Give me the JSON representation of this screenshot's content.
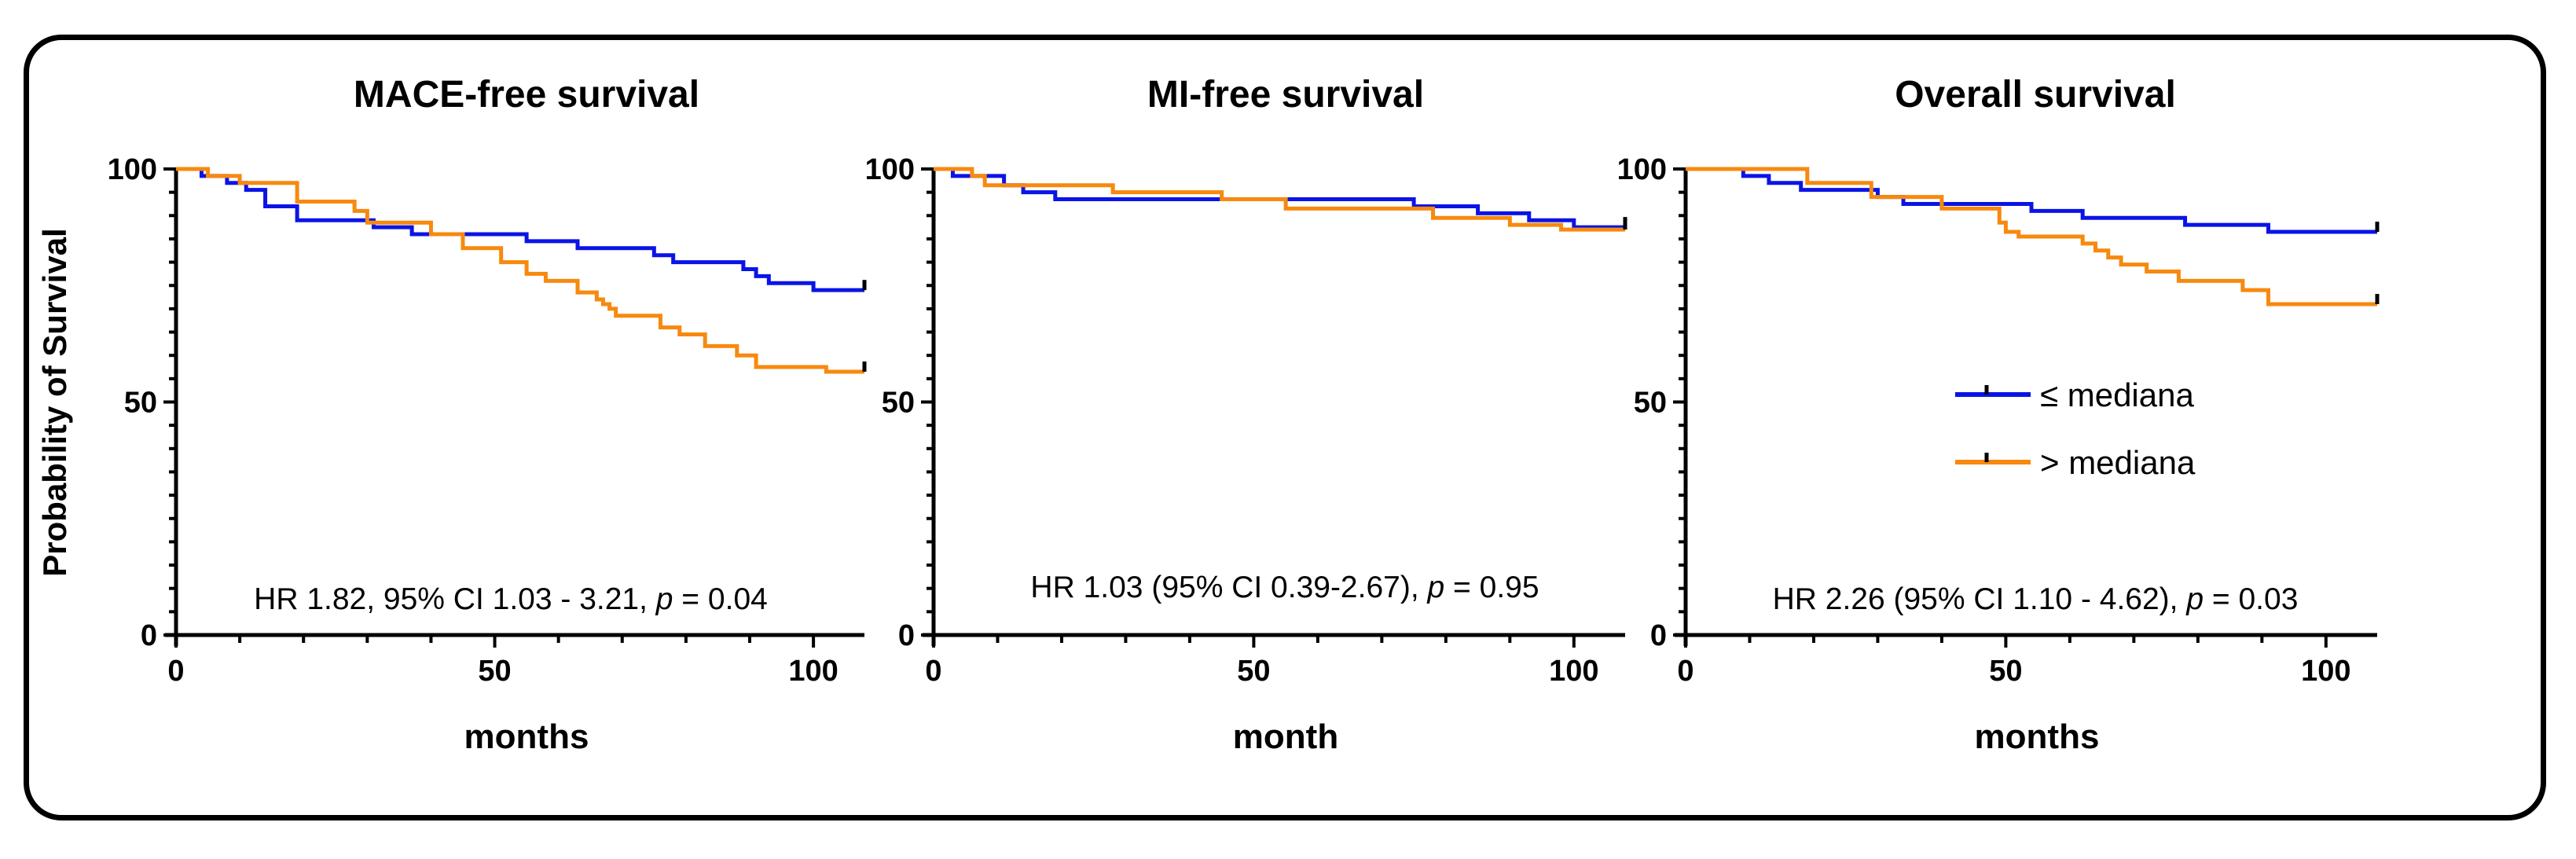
{
  "colors": {
    "le_median": "#0a14e6",
    "gt_median": "#f7890f",
    "axis": "#000000",
    "censor": "#000000"
  },
  "legend": {
    "le_label": "≤ mediana",
    "gt_label": "> mediana"
  },
  "y_axis_label": "Probability of Survival",
  "chart_data": [
    {
      "type": "line",
      "step": true,
      "title": "MACE-free survival",
      "xlabel": "months",
      "ylabel": "Probability of Survival",
      "xlim": [
        0,
        108
      ],
      "ylim": [
        0,
        100
      ],
      "xticks": [
        0,
        50,
        100
      ],
      "yticks": [
        0,
        50,
        100
      ],
      "annotation": {
        "prefix": "HR 1.82, 95% CI 1.03 - 3.21, ",
        "p": "p",
        "suffix": " = 0.04"
      },
      "series": [
        {
          "name": "≤ mediana",
          "color_key": "le_median",
          "x": [
            0,
            4,
            8,
            11,
            14,
            19,
            31,
            37,
            55,
            63,
            75,
            78,
            89,
            91,
            93,
            97,
            100,
            108
          ],
          "y": [
            100,
            98.5,
            97,
            95.5,
            92,
            89,
            87.5,
            86,
            84.5,
            83,
            81.5,
            80,
            78.5,
            77,
            75.5,
            75.5,
            74,
            74
          ],
          "censor": [
            108
          ]
        },
        {
          "name": "> mediana",
          "color_key": "gt_median",
          "x": [
            0,
            5,
            10,
            19,
            28,
            30,
            40,
            45,
            51,
            55,
            58,
            63,
            66,
            67,
            68,
            69,
            71,
            76,
            79,
            83,
            88,
            91,
            100,
            102,
            108
          ],
          "y": [
            100,
            98.5,
            97,
            93,
            91,
            88.5,
            86,
            83,
            80,
            77.5,
            76,
            73.5,
            72,
            71,
            70,
            68.5,
            68.5,
            66,
            64.5,
            62,
            60,
            57.5,
            57.5,
            56.5,
            56.5
          ],
          "censor": [
            108
          ]
        }
      ]
    },
    {
      "type": "line",
      "step": true,
      "title": "MI-free survival",
      "xlabel": "month",
      "ylabel": "",
      "xlim": [
        0,
        108
      ],
      "ylim": [
        0,
        100
      ],
      "xticks": [
        0,
        50,
        100
      ],
      "yticks": [
        0,
        50,
        100
      ],
      "annotation": {
        "prefix": "HR 1.03 (95% CI 0.39-2.67), ",
        "p": "p",
        "suffix": " = 0.95"
      },
      "series": [
        {
          "name": "≤ mediana",
          "color_key": "le_median",
          "x": [
            0,
            3,
            11,
            14,
            19,
            75,
            85,
            93,
            100,
            108
          ],
          "y": [
            100,
            98.5,
            96.5,
            95,
            93.5,
            92,
            90.5,
            89,
            87.5,
            87.5
          ],
          "censor": [
            108
          ]
        },
        {
          "name": "> mediana",
          "color_key": "gt_median",
          "x": [
            0,
            6,
            8,
            28,
            45,
            55,
            78,
            90,
            98,
            108
          ],
          "y": [
            100,
            98.5,
            96.5,
            95,
            93.5,
            91.5,
            89.5,
            88,
            87,
            87
          ],
          "censor": [
            108
          ]
        }
      ]
    },
    {
      "type": "line",
      "step": true,
      "title": "Overall survival",
      "xlabel": "months",
      "ylabel": "",
      "xlim": [
        0,
        108
      ],
      "ylim": [
        0,
        100
      ],
      "xticks": [
        0,
        50,
        100
      ],
      "yticks": [
        0,
        50,
        100
      ],
      "annotation": {
        "prefix": "HR 2.26 (95% CI 1.10 - 4.62), ",
        "p": "p",
        "suffix": " = 0.03"
      },
      "series": [
        {
          "name": "≤ mediana",
          "color_key": "le_median",
          "x": [
            0,
            9,
            13,
            18,
            30,
            34,
            54,
            62,
            78,
            91,
            108
          ],
          "y": [
            100,
            98.5,
            97,
            95.5,
            94,
            92.5,
            91,
            89.5,
            88,
            86.5,
            86.5
          ],
          "censor": [
            108
          ]
        },
        {
          "name": "> mediana",
          "color_key": "gt_median",
          "x": [
            0,
            19,
            29,
            40,
            49,
            50,
            52,
            62,
            64,
            66,
            68,
            72,
            77,
            87,
            91,
            108
          ],
          "y": [
            100,
            97,
            94,
            91.5,
            88.5,
            86.5,
            85.5,
            84,
            82.5,
            81,
            79.5,
            78,
            76,
            74,
            71,
            71
          ],
          "censor": [
            108
          ]
        }
      ]
    }
  ]
}
